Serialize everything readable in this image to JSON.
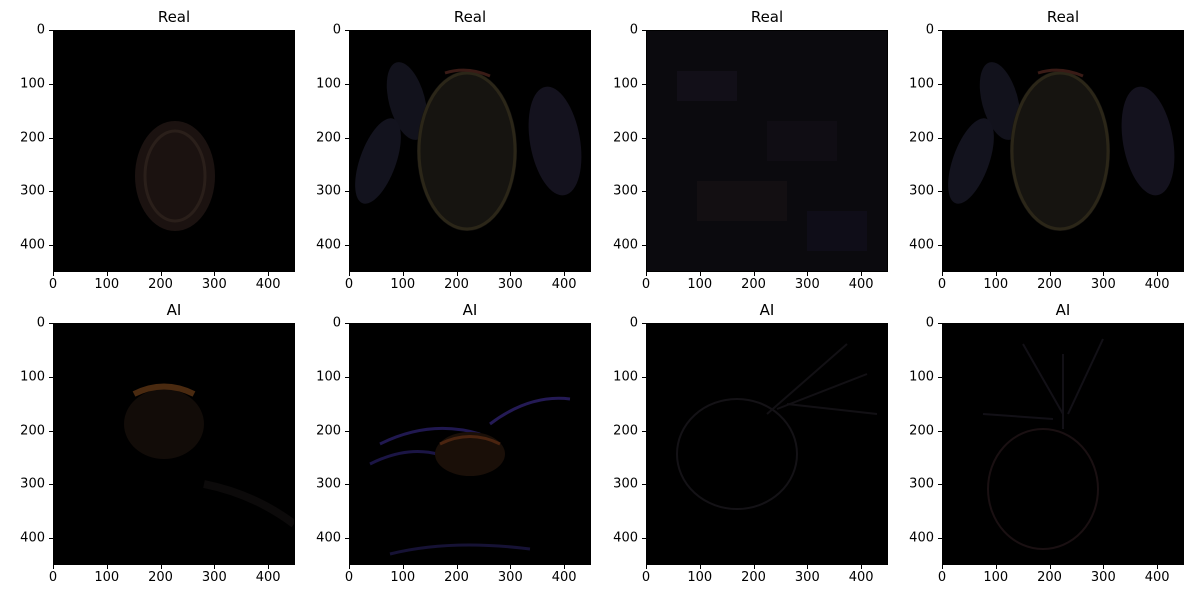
{
  "figure": {
    "panels": [
      {
        "title": "Real",
        "subject": "real-fruit-small-dim"
      },
      {
        "title": "Real",
        "subject": "real-fruit-large-leaves"
      },
      {
        "title": "Real",
        "subject": "real-noise-texture"
      },
      {
        "title": "Real",
        "subject": "real-fruit-large-leaves"
      },
      {
        "title": "AI",
        "subject": "ai-apple-glow"
      },
      {
        "title": "AI",
        "subject": "ai-fruit-blue-leaves"
      },
      {
        "title": "AI",
        "subject": "ai-fruit-plant-dim"
      },
      {
        "title": "AI",
        "subject": "ai-apple-plant-dim"
      }
    ],
    "x_ticks": [
      "0",
      "100",
      "200",
      "300",
      "400"
    ],
    "y_ticks": [
      "0",
      "100",
      "200",
      "300",
      "400"
    ],
    "colors": {
      "background": "#ffffff",
      "image_bg": "#000000",
      "text": "#000000"
    }
  }
}
